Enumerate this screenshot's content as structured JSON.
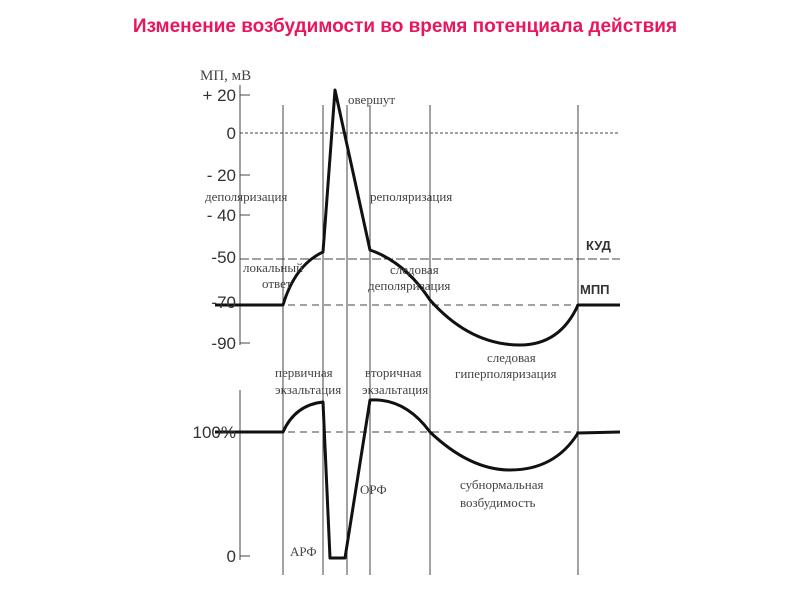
{
  "title": "Изменение возбудимости во время потенциала действия",
  "top_plot": {
    "axis_label": "МП, мВ",
    "y_labels": [
      "+ 20",
      "0",
      "- 20",
      "- 40",
      "-50",
      "-70",
      "-90"
    ],
    "annotations": {
      "overshoot": "овершут",
      "depolarization": "деполяризация",
      "repolarization": "реполяризация",
      "threshold": "КУД",
      "local_response_1": "локальный",
      "local_response_2": "ответ",
      "trace_depol_1": "следовая",
      "trace_depol_2": "деполяризация",
      "resting": "МПП",
      "trace_hyper_1": "следовая",
      "trace_hyper_2": "гиперполяризация"
    }
  },
  "bottom_plot": {
    "y_labels": [
      "100%",
      "0"
    ],
    "annotations": {
      "primary_1": "первичная",
      "primary_2": "экзальтация",
      "secondary_1": "вторичная",
      "secondary_2": "экзальтация",
      "relative_refractory": "ОРФ",
      "subnormal_1": "субнормальная",
      "subnormal_2": "возбудимость",
      "absolute_refractory": "АРФ"
    }
  }
}
